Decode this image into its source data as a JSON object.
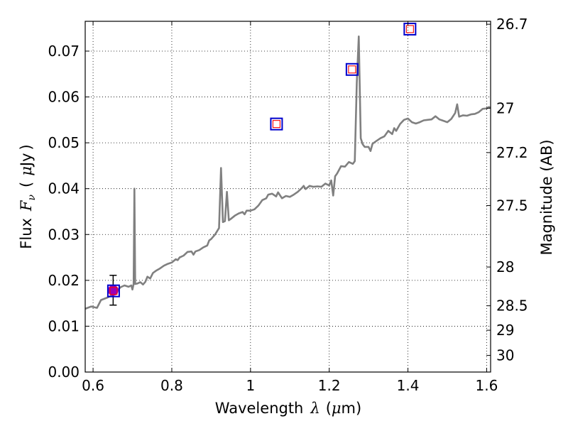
{
  "chart_data": {
    "type": "line",
    "xlabel": {
      "prefix": "Wavelength",
      "symbol": "λ",
      "unit_open": "(",
      "unit_mu": "μ",
      "unit_rest": "m)"
    },
    "ylabel": {
      "prefix": "Flux",
      "symbol": "F",
      "subscript": "ν",
      "unit_open": "(",
      "unit_mu": "μ",
      "unit_rest": "Jy",
      "unit_close": ")"
    },
    "y2label": "Magnitude (AB)",
    "xlim": [
      0.58,
      1.61
    ],
    "ylim": [
      0.0,
      0.0765
    ],
    "x_ticks": [
      {
        "value": 0.6,
        "label": "0.6"
      },
      {
        "value": 0.8,
        "label": "0.8"
      },
      {
        "value": 1.0,
        "label": "1"
      },
      {
        "value": 1.2,
        "label": "1.2"
      },
      {
        "value": 1.4,
        "label": "1.4"
      },
      {
        "value": 1.6,
        "label": "1.6"
      }
    ],
    "y_ticks": [
      {
        "value": 0.0,
        "label": "0.00"
      },
      {
        "value": 0.01,
        "label": "0.01"
      },
      {
        "value": 0.02,
        "label": "0.02"
      },
      {
        "value": 0.03,
        "label": "0.03"
      },
      {
        "value": 0.04,
        "label": "0.04"
      },
      {
        "value": 0.05,
        "label": "0.05"
      },
      {
        "value": 0.06,
        "label": "0.06"
      },
      {
        "value": 0.07,
        "label": "0.07"
      }
    ],
    "y2_ticks": [
      {
        "mag": 26.7,
        "label": "26.7"
      },
      {
        "mag": 27.0,
        "label": "27"
      },
      {
        "mag": 27.2,
        "label": "27.2"
      },
      {
        "mag": 27.5,
        "label": "27.5"
      },
      {
        "mag": 28.0,
        "label": "28"
      },
      {
        "mag": 28.5,
        "label": "28.5"
      },
      {
        "mag": 29.0,
        "label": "29"
      },
      {
        "mag": 30.0,
        "label": "30"
      }
    ],
    "grid": true,
    "spectrum": {
      "color": "#808080",
      "points": [
        [
          0.58,
          0.0138
        ],
        [
          0.595,
          0.0143
        ],
        [
          0.61,
          0.014
        ],
        [
          0.62,
          0.0157
        ],
        [
          0.635,
          0.0162
        ],
        [
          0.65,
          0.0168
        ],
        [
          0.66,
          0.0177
        ],
        [
          0.67,
          0.0185
        ],
        [
          0.68,
          0.0189
        ],
        [
          0.69,
          0.0186
        ],
        [
          0.697,
          0.0189
        ],
        [
          0.7,
          0.018
        ],
        [
          0.703,
          0.0192
        ],
        [
          0.705,
          0.04
        ],
        [
          0.707,
          0.0192
        ],
        [
          0.712,
          0.0193
        ],
        [
          0.72,
          0.0196
        ],
        [
          0.727,
          0.0191
        ],
        [
          0.733,
          0.0197
        ],
        [
          0.738,
          0.0208
        ],
        [
          0.745,
          0.0204
        ],
        [
          0.752,
          0.0216
        ],
        [
          0.76,
          0.0221
        ],
        [
          0.77,
          0.0226
        ],
        [
          0.78,
          0.0232
        ],
        [
          0.79,
          0.0236
        ],
        [
          0.8,
          0.0239
        ],
        [
          0.81,
          0.0246
        ],
        [
          0.815,
          0.0244
        ],
        [
          0.82,
          0.025
        ],
        [
          0.83,
          0.0254
        ],
        [
          0.84,
          0.0262
        ],
        [
          0.85,
          0.0263
        ],
        [
          0.855,
          0.0256
        ],
        [
          0.86,
          0.0263
        ],
        [
          0.87,
          0.0266
        ],
        [
          0.88,
          0.0272
        ],
        [
          0.89,
          0.0276
        ],
        [
          0.895,
          0.0287
        ],
        [
          0.9,
          0.029
        ],
        [
          0.91,
          0.03
        ],
        [
          0.92,
          0.0314
        ],
        [
          0.925,
          0.0445
        ],
        [
          0.93,
          0.0327
        ],
        [
          0.935,
          0.0329
        ],
        [
          0.94,
          0.0393
        ],
        [
          0.945,
          0.0331
        ],
        [
          0.95,
          0.0334
        ],
        [
          0.96,
          0.0341
        ],
        [
          0.97,
          0.0346
        ],
        [
          0.98,
          0.0349
        ],
        [
          0.985,
          0.0344
        ],
        [
          0.99,
          0.0352
        ],
        [
          1.0,
          0.0352
        ],
        [
          1.01,
          0.0355
        ],
        [
          1.02,
          0.0363
        ],
        [
          1.03,
          0.0375
        ],
        [
          1.04,
          0.0379
        ],
        [
          1.045,
          0.0387
        ],
        [
          1.055,
          0.0389
        ],
        [
          1.065,
          0.0383
        ],
        [
          1.07,
          0.0392
        ],
        [
          1.08,
          0.0379
        ],
        [
          1.09,
          0.0384
        ],
        [
          1.1,
          0.0382
        ],
        [
          1.11,
          0.0387
        ],
        [
          1.12,
          0.0393
        ],
        [
          1.13,
          0.0401
        ],
        [
          1.135,
          0.0406
        ],
        [
          1.14,
          0.0399
        ],
        [
          1.15,
          0.0406
        ],
        [
          1.16,
          0.0404
        ],
        [
          1.17,
          0.0405
        ],
        [
          1.18,
          0.0404
        ],
        [
          1.19,
          0.0411
        ],
        [
          1.2,
          0.0407
        ],
        [
          1.205,
          0.0418
        ],
        [
          1.21,
          0.0385
        ],
        [
          1.215,
          0.0427
        ],
        [
          1.22,
          0.0433
        ],
        [
          1.23,
          0.0449
        ],
        [
          1.24,
          0.0448
        ],
        [
          1.25,
          0.0458
        ],
        [
          1.26,
          0.0454
        ],
        [
          1.265,
          0.046
        ],
        [
          1.27,
          0.063
        ],
        [
          1.275,
          0.0732
        ],
        [
          1.28,
          0.051
        ],
        [
          1.285,
          0.0497
        ],
        [
          1.29,
          0.0491
        ],
        [
          1.3,
          0.0491
        ],
        [
          1.305,
          0.0482
        ],
        [
          1.31,
          0.0498
        ],
        [
          1.32,
          0.0504
        ],
        [
          1.33,
          0.051
        ],
        [
          1.34,
          0.0514
        ],
        [
          1.35,
          0.0526
        ],
        [
          1.36,
          0.0519
        ],
        [
          1.365,
          0.0532
        ],
        [
          1.37,
          0.0526
        ],
        [
          1.38,
          0.0541
        ],
        [
          1.39,
          0.055
        ],
        [
          1.4,
          0.0553
        ],
        [
          1.41,
          0.0545
        ],
        [
          1.42,
          0.0542
        ],
        [
          1.43,
          0.0545
        ],
        [
          1.44,
          0.0549
        ],
        [
          1.45,
          0.055
        ],
        [
          1.46,
          0.0551
        ],
        [
          1.47,
          0.0558
        ],
        [
          1.48,
          0.0551
        ],
        [
          1.49,
          0.0548
        ],
        [
          1.5,
          0.0545
        ],
        [
          1.51,
          0.0552
        ],
        [
          1.52,
          0.0565
        ],
        [
          1.525,
          0.0584
        ],
        [
          1.53,
          0.0557
        ],
        [
          1.54,
          0.056
        ],
        [
          1.55,
          0.0559
        ],
        [
          1.56,
          0.0562
        ],
        [
          1.57,
          0.0563
        ],
        [
          1.58,
          0.0567
        ],
        [
          1.59,
          0.0574
        ],
        [
          1.6,
          0.0575
        ],
        [
          1.605,
          0.0578
        ],
        [
          1.61,
          0.0577
        ]
      ]
    },
    "photometry": [
      {
        "x": 0.652,
        "y": 0.0177
      },
      {
        "x": 1.066,
        "y": 0.0541
      },
      {
        "x": 1.258,
        "y": 0.066
      },
      {
        "x": 1.405,
        "y": 0.0748
      }
    ],
    "measurement": {
      "x": 0.651,
      "y": 0.0178,
      "yerr_low": 0.0032,
      "yerr_high": 0.0033,
      "color": "#9a00b8"
    },
    "colors": {
      "spectrum": "#808080",
      "box_outer": "#0000cc",
      "box_inner": "#ff0000",
      "errorbar": "#000000",
      "grid": "#000000"
    }
  }
}
